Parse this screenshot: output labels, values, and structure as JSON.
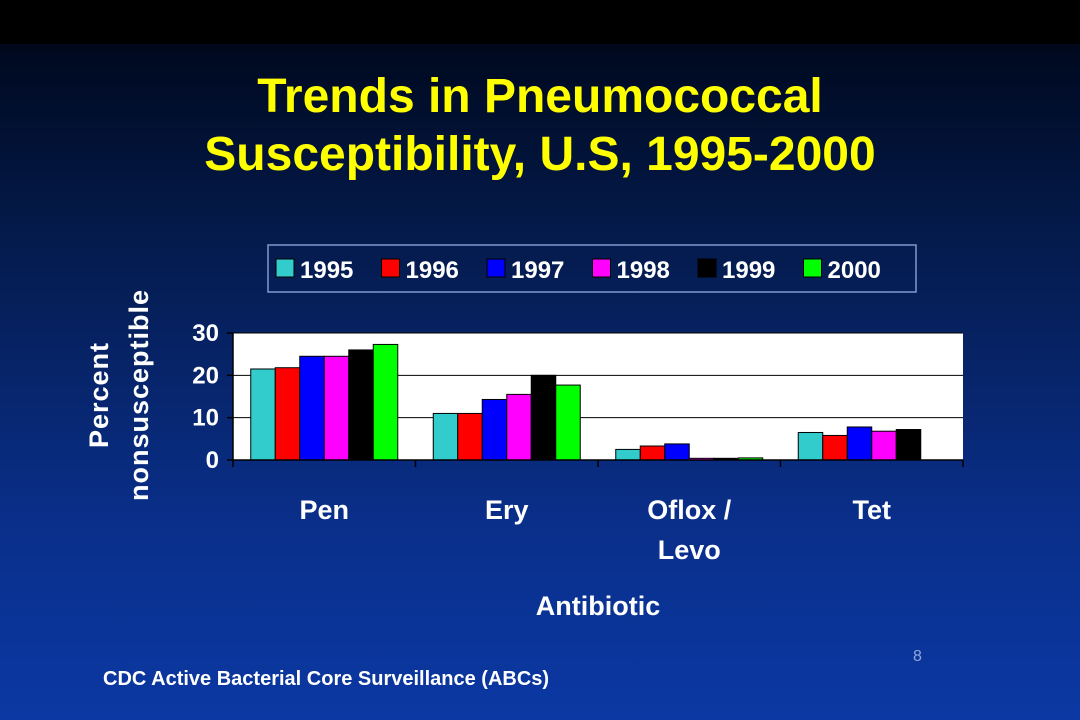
{
  "slide": {
    "title_line1": "Trends in Pneumococcal",
    "title_line2": "Susceptibility, U.S, 1995-2000",
    "source": "CDC Active Bacterial Core Surveillance (ABCs)",
    "slide_number": "8"
  },
  "chart_data": {
    "type": "bar",
    "categories": [
      [
        "Pen"
      ],
      [
        "Ery"
      ],
      [
        "Oflox /",
        "Levo"
      ],
      [
        "Tet"
      ]
    ],
    "xlabel": "Antibiotic",
    "ylabel": [
      "Percent",
      "nonsusceptible"
    ],
    "ylim": [
      0,
      30
    ],
    "yticks": [
      0,
      10,
      20,
      30
    ],
    "grid": true,
    "legend_position": "top",
    "series": [
      {
        "name": "1995",
        "color": "#33cccc",
        "values": [
          21.5,
          11,
          2.5,
          6.5
        ]
      },
      {
        "name": "1996",
        "color": "#ff0000",
        "values": [
          21.8,
          11,
          3.3,
          5.8
        ]
      },
      {
        "name": "1997",
        "color": "#0000ff",
        "values": [
          24.5,
          14.3,
          3.8,
          7.8
        ]
      },
      {
        "name": "1998",
        "color": "#ff00ff",
        "values": [
          24.5,
          15.5,
          0.4,
          6.8
        ]
      },
      {
        "name": "1999",
        "color": "#000000",
        "values": [
          26,
          20,
          0.4,
          7.2
        ]
      },
      {
        "name": "2000",
        "color": "#00ff00",
        "values": [
          27.3,
          17.7,
          0.5,
          null
        ]
      }
    ]
  }
}
